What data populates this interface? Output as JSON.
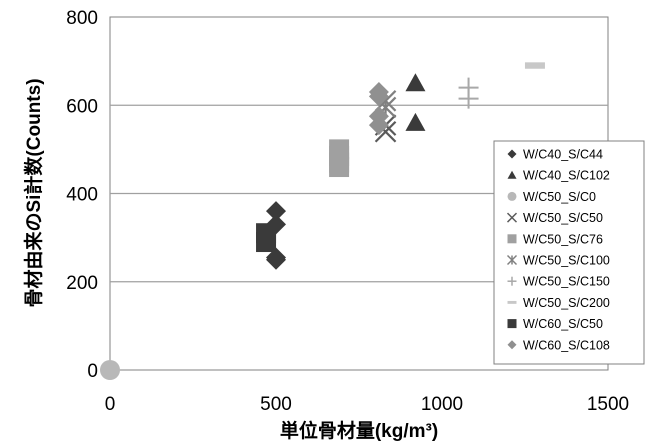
{
  "chart_data": {
    "type": "scatter",
    "title": "",
    "xlabel": "単位骨材量(kg/m³)",
    "ylabel": "骨材由来のSi計数(Counts)",
    "xlim": [
      0,
      1500
    ],
    "ylim": [
      0,
      800
    ],
    "xticks": [
      0,
      500,
      1000,
      1500
    ],
    "yticks": [
      0,
      200,
      400,
      600,
      800
    ],
    "xtick_labels": [
      "0",
      "500",
      "1000",
      "1500"
    ],
    "ytick_labels": [
      "0",
      "200",
      "400",
      "600",
      "800"
    ],
    "grid": "horizontal",
    "legend_position": "right",
    "series": [
      {
        "name": "W/C40_S/C44",
        "marker": "diamond",
        "color": "#3a3a3a",
        "x": [
          500,
          500,
          500,
          500
        ],
        "y": [
          360,
          330,
          255,
          250
        ]
      },
      {
        "name": "W/C40_S/C102",
        "marker": "triangle",
        "color": "#3a3a3a",
        "x": [
          920,
          920
        ],
        "y": [
          650,
          560
        ]
      },
      {
        "name": "W/C50_S/C0",
        "marker": "circle",
        "color": "#b8b8b8",
        "x": [
          0
        ],
        "y": [
          0
        ]
      },
      {
        "name": "W/C50_S/C50",
        "marker": "x",
        "color": "#5a5a5a",
        "x": [
          830,
          830
        ],
        "y": [
          555,
          540
        ]
      },
      {
        "name": "W/C50_S/C76",
        "marker": "square",
        "color": "#a0a0a0",
        "x": [
          690,
          690,
          690,
          690
        ],
        "y": [
          500,
          485,
          470,
          460
        ]
      },
      {
        "name": "W/C50_S/C100",
        "marker": "asterisk",
        "color": "#808080",
        "x": [
          830,
          830
        ],
        "y": [
          610,
          595
        ]
      },
      {
        "name": "W/C50_S/C150",
        "marker": "plus",
        "color": "#a8a8a8",
        "x": [
          1080,
          1080
        ],
        "y": [
          640,
          615
        ]
      },
      {
        "name": "W/C50_S/C200",
        "marker": "dash",
        "color": "#c8c8c8",
        "x": [
          1280
        ],
        "y": [
          690
        ]
      },
      {
        "name": "W/C60_S/C50",
        "marker": "square",
        "color": "#3a3a3a",
        "x": [
          470,
          470
        ],
        "y": [
          310,
          290
        ]
      },
      {
        "name": "W/C60_S/C108",
        "marker": "diamond",
        "color": "#909090",
        "x": [
          810,
          810,
          810,
          810
        ],
        "y": [
          630,
          620,
          575,
          555
        ]
      }
    ]
  }
}
